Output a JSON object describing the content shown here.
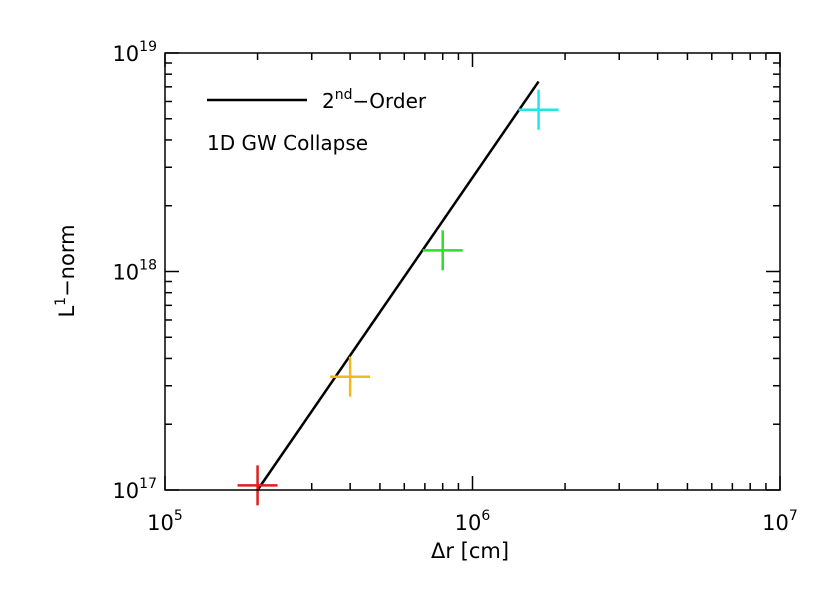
{
  "chart_data": {
    "type": "scatter",
    "xscale": "log",
    "yscale": "log",
    "xlim": [
      100000,
      10000000
    ],
    "ylim": [
      100000000000000000,
      10000000000000000000
    ],
    "xlabel": "Δr [cm]",
    "ylabel": {
      "base": "L",
      "sup": "1",
      "rest": "−norm"
    },
    "xticks": [
      {
        "value": 100000,
        "base": "10",
        "exp": "5"
      },
      {
        "value": 1000000,
        "base": "10",
        "exp": "6"
      },
      {
        "value": 10000000,
        "base": "10",
        "exp": "7"
      }
    ],
    "yticks": [
      {
        "value": 100000000000000000,
        "base": "10",
        "exp": "17"
      },
      {
        "value": 1000000000000000000,
        "base": "10",
        "exp": "18"
      },
      {
        "value": 10000000000000000000,
        "base": "10",
        "exp": "19"
      }
    ],
    "grid": false,
    "legend": {
      "position": "top-left",
      "line_label": {
        "pre": "2",
        "sup": "nd",
        "post": "−Order"
      },
      "note": "1D GW Collapse"
    },
    "series": [
      {
        "style": "line",
        "color": "#000000",
        "x": [
          200000,
          1640000
        ],
        "y": [
          100000000000000000,
          7400000000000000000
        ]
      },
      {
        "style": "markers",
        "marker": "plus",
        "x": [
          200000,
          400000,
          800000,
          1640000
        ],
        "y": [
          105000000000000000,
          330000000000000000,
          1250000000000000000,
          5500000000000000000
        ],
        "colors": [
          "#e01e1e",
          "#f2b81c",
          "#2edc2e",
          "#22e5e5"
        ]
      }
    ]
  }
}
